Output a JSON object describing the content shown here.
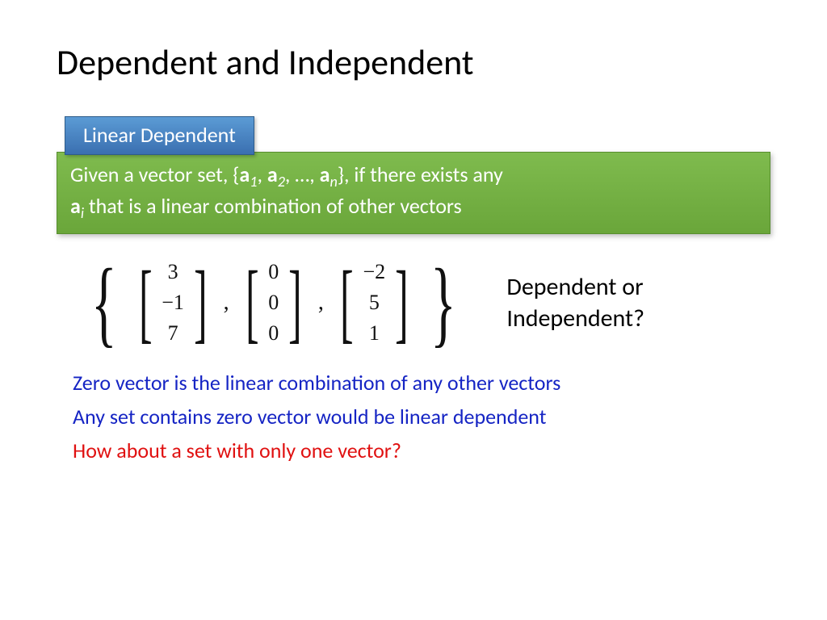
{
  "title": "Dependent and Independent",
  "label": "Linear Dependent",
  "definition": {
    "pre": "Given a vector set, {",
    "a1": "a",
    "s1": "1",
    "c1": ", ",
    "a2": "a",
    "s2": "2",
    "c2": ", …, ",
    "an": "a",
    "sn": "n",
    "mid": "}, if there exists any ",
    "ai": "a",
    "si": "i",
    "post": " that is a linear combination of other vectors"
  },
  "vectors": {
    "v1": [
      "3",
      "−1",
      "7"
    ],
    "v2": [
      "0",
      "0",
      "0"
    ],
    "v3": [
      "−2",
      "5",
      "1"
    ]
  },
  "question_l1": "Dependent or",
  "question_l2": "Independent?",
  "note1": "Zero vector is the linear combination of any other vectors",
  "note2": "Any set contains zero vector would be linear dependent",
  "note3": "How about a set with only one vector?",
  "colors": {
    "blue_top": "#5b9bd5",
    "blue_bottom": "#3a6fb0",
    "green_top": "#7fbb4e",
    "green_bottom": "#6aa63a",
    "note_blue": "#1524c4",
    "note_red": "#e01010"
  }
}
